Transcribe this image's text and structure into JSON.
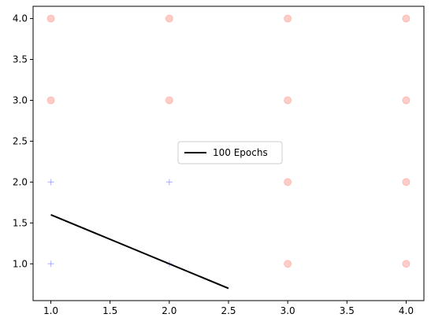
{
  "chart_data": {
    "type": "scatter",
    "title": "",
    "xlabel": "",
    "ylabel": "",
    "xlim": [
      0.85,
      4.15
    ],
    "ylim": [
      0.55,
      4.15
    ],
    "xticks": [
      "1.0",
      "1.5",
      "2.0",
      "2.5",
      "3.0",
      "3.5",
      "4.0"
    ],
    "yticks": [
      "1.0",
      "1.5",
      "2.0",
      "2.5",
      "3.0",
      "3.5",
      "4.0"
    ],
    "grid": false,
    "legend_placement": "center",
    "series": [
      {
        "marker": "circle",
        "color": "#ff6f61",
        "opacity": 0.35,
        "points": [
          [
            1,
            4
          ],
          [
            2,
            4
          ],
          [
            3,
            4
          ],
          [
            4,
            4
          ],
          [
            1,
            3
          ],
          [
            2,
            3
          ],
          [
            3,
            3
          ],
          [
            4,
            3
          ],
          [
            3,
            2
          ],
          [
            4,
            2
          ],
          [
            3,
            1
          ],
          [
            4,
            1
          ]
        ]
      },
      {
        "marker": "plus",
        "color": "#6b6bff",
        "opacity": 0.45,
        "points": [
          [
            1,
            2
          ],
          [
            2,
            2
          ],
          [
            1,
            1
          ],
          [
            2,
            1
          ]
        ]
      },
      {
        "name": "100 Epochs",
        "marker": "line",
        "color": "#000000",
        "points": [
          [
            1.0,
            1.6
          ],
          [
            2.5,
            0.7
          ]
        ]
      }
    ]
  }
}
